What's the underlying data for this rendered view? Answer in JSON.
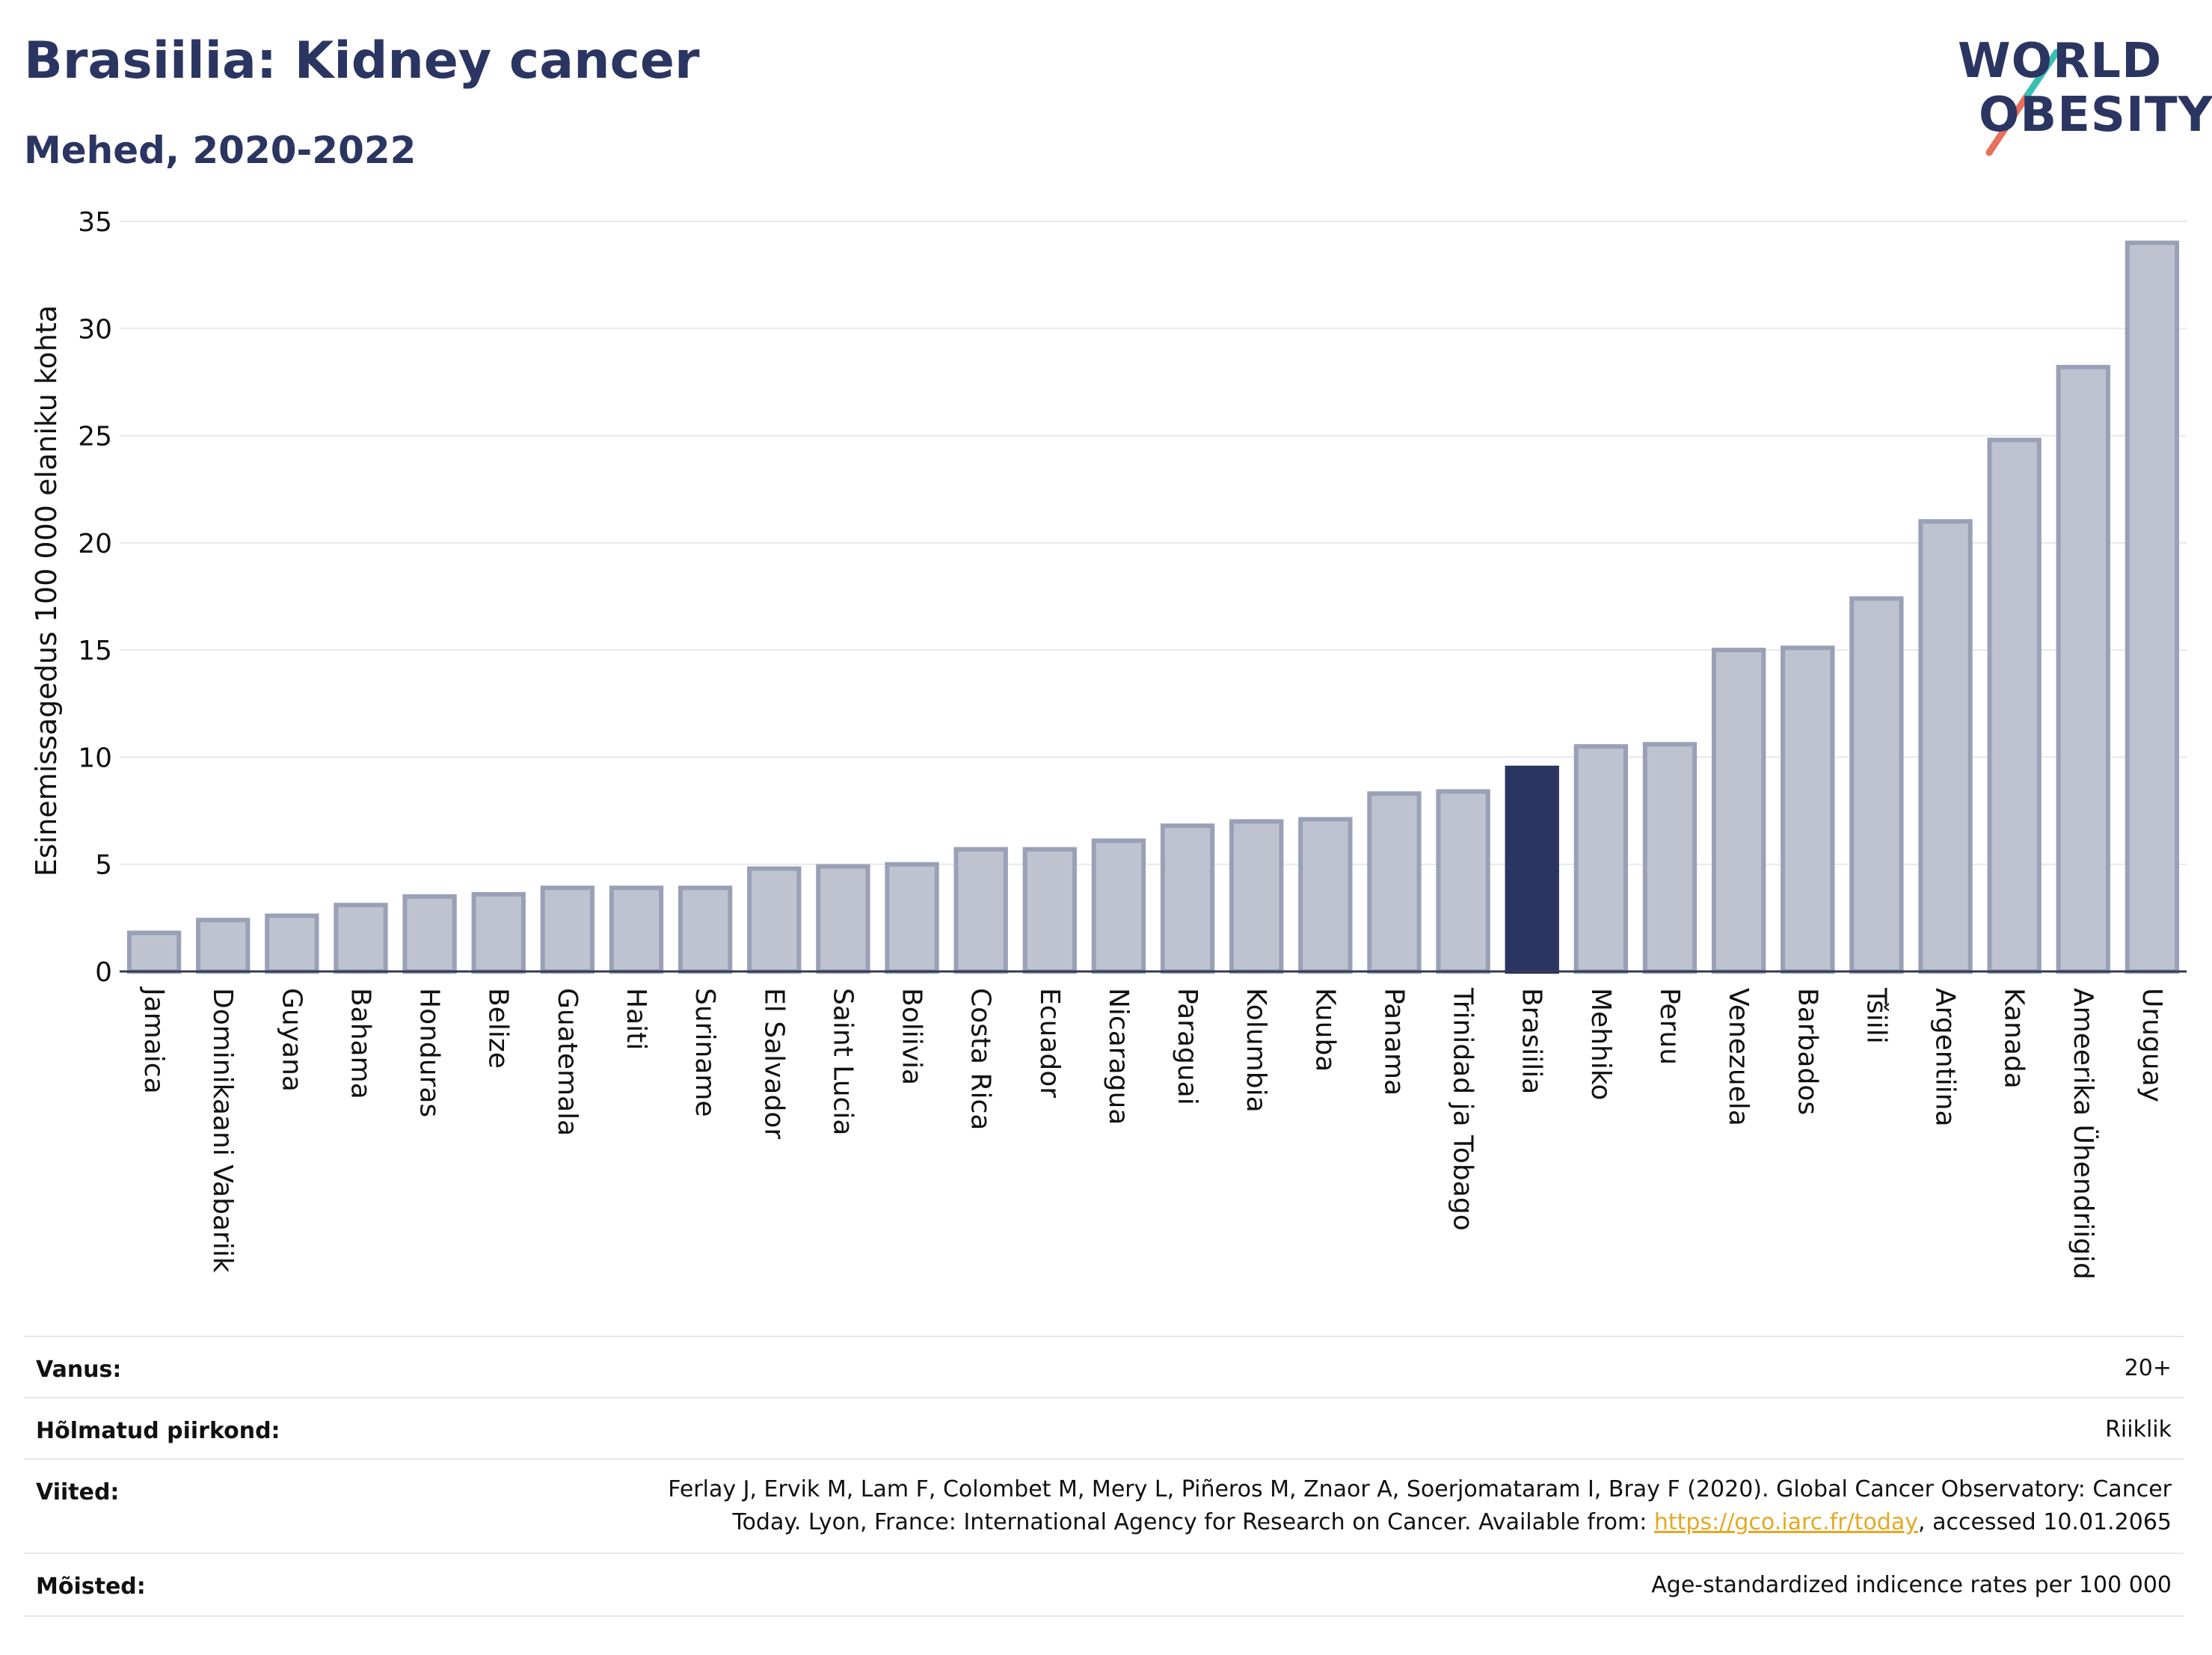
{
  "title": "Brasiilia: Kidney cancer",
  "subtitle": "Mehed, 2020-2022",
  "logo": {
    "line1": "WORLD",
    "line2": "OBESITY"
  },
  "colors": {
    "bar": "#bfc3d0",
    "bar_border": "#9aa0b6",
    "highlight": "#2b3561",
    "title": "#2b3561",
    "grid": "#e6e8ee",
    "link": "#e5a823"
  },
  "chart_data": {
    "type": "bar",
    "title": "Brasiilia: Kidney cancer",
    "subtitle": "Mehed, 2020-2022",
    "xlabel": "",
    "ylabel": "Esinemissagedus 100 000 elaniku kohta",
    "ylim": [
      0,
      35
    ],
    "yticks": [
      0,
      5,
      10,
      15,
      20,
      25,
      30,
      35
    ],
    "grid": true,
    "highlight": "Brasiilia",
    "categories": [
      "Jamaica",
      "Dominikaani Vabariik",
      "Guyana",
      "Bahama",
      "Honduras",
      "Belize",
      "Guatemala",
      "Haiti",
      "Suriname",
      "El Salvador",
      "Saint Lucia",
      "Boliivia",
      "Costa Rica",
      "Ecuador",
      "Nicaragua",
      "Paraguai",
      "Kolumbia",
      "Kuuba",
      "Panama",
      "Trinidad ja Tobago",
      "Brasiilia",
      "Mehhiko",
      "Peruu",
      "Venezuela",
      "Barbados",
      "Tšiili",
      "Argentiina",
      "Kanada",
      "Ameerika Ühendriigid",
      "Uruguay"
    ],
    "values": [
      1.8,
      2.4,
      2.6,
      3.1,
      3.5,
      3.6,
      3.9,
      3.9,
      3.9,
      4.8,
      4.9,
      5.0,
      5.7,
      5.7,
      6.1,
      6.8,
      7.0,
      7.1,
      8.3,
      8.4,
      9.5,
      10.5,
      10.6,
      15.0,
      15.1,
      17.4,
      21.0,
      24.8,
      28.2,
      34.0
    ]
  },
  "meta": {
    "rows": [
      {
        "label": "Vanus:",
        "value": "20+"
      },
      {
        "label": "Hõlmatud piirkond:",
        "value": "Riiklik"
      },
      {
        "label": "Viited:",
        "value_line1": "Ferlay J, Ervik M, Lam F, Colombet M, Mery L, Piñeros M, Znaor A, Soerjomataram I, Bray F (2020). Global Cancer Observatory: Cancer",
        "value_line2_pre": "Today. Lyon, France: International Agency for Research on Cancer. Available from: ",
        "link": "https://gco.iarc.fr/today",
        "value_line2_post": ", accessed 10.01.2065"
      },
      {
        "label": "Mõisted:",
        "value": "Age-standardized indicence rates per 100 000"
      }
    ]
  }
}
